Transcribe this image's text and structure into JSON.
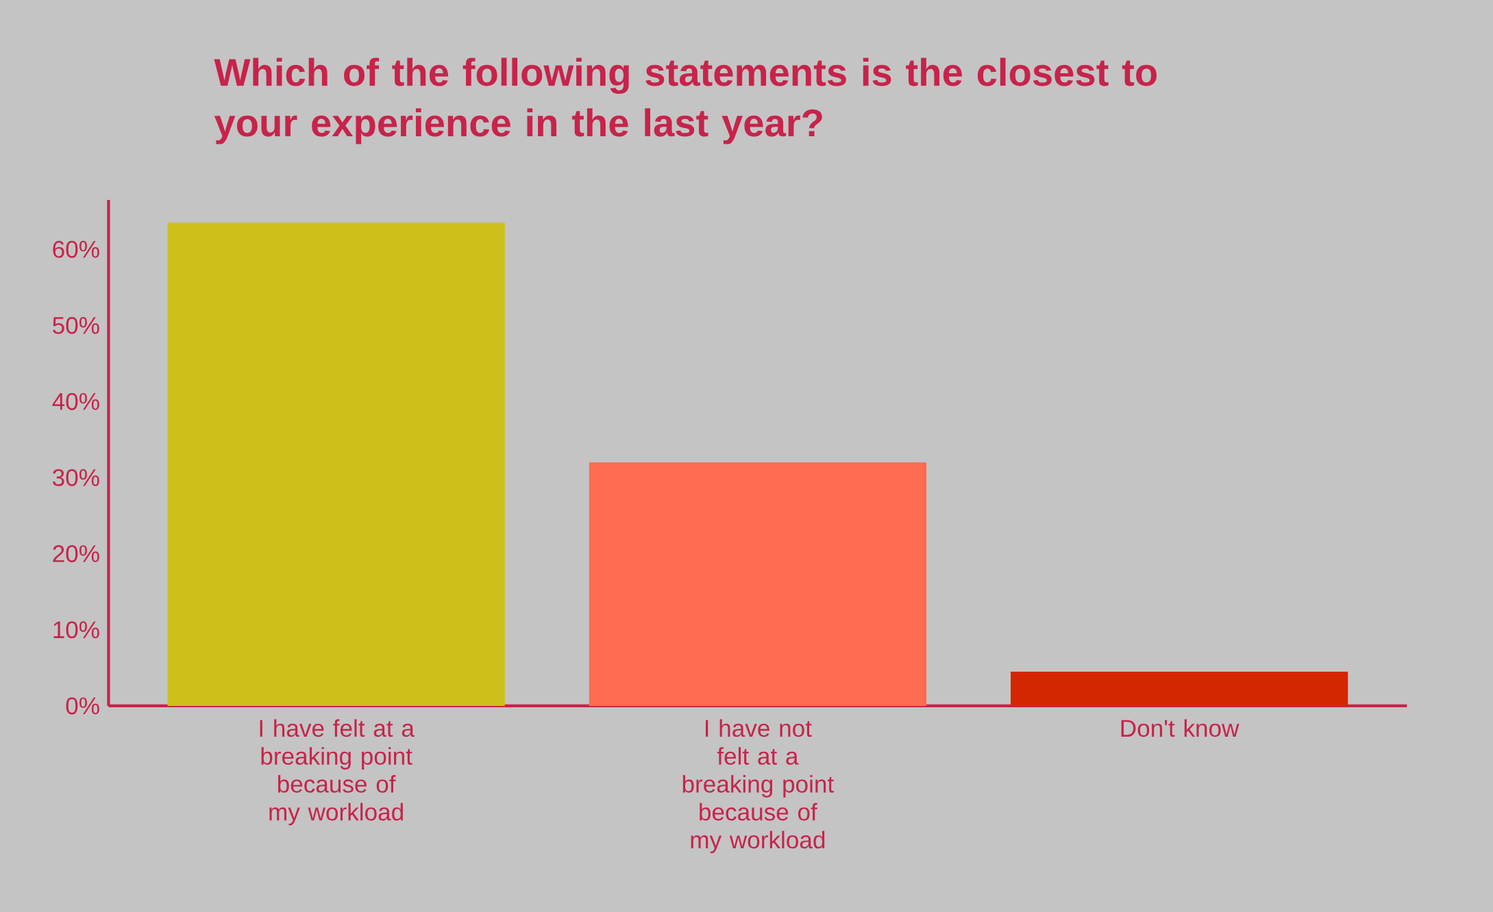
{
  "chart_data": {
    "type": "bar",
    "title": "Which of the following statements is the closest to your experience in the last year?",
    "categories": [
      "I have felt at a breaking point because of my workload",
      "I have not felt at a breaking point because of my workload",
      "Don't know"
    ],
    "values": [
      63.5,
      32,
      4.5
    ],
    "colors": [
      "#cdc01a",
      "#ff6c4f",
      "#d42600"
    ],
    "ylim": [
      0,
      66.5
    ],
    "yticks": [
      {
        "value": 0,
        "label": "0%"
      },
      {
        "value": 10,
        "label": "10%"
      },
      {
        "value": 20,
        "label": "20%"
      },
      {
        "value": 30,
        "label": "30%"
      },
      {
        "value": 40,
        "label": "40%"
      },
      {
        "value": 50,
        "label": "50%"
      },
      {
        "value": 60,
        "label": "60%"
      }
    ],
    "legend": false
  }
}
